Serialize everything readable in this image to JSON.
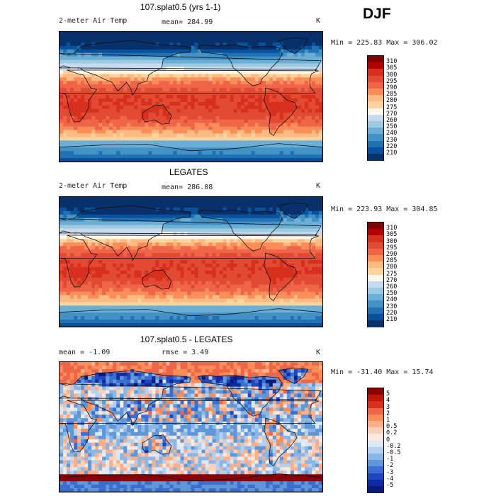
{
  "season": "DJF",
  "panels": [
    {
      "title": "107.splat0.5 (yrs 1-1)",
      "left_label": "2-meter Air Temp",
      "stat_label": "mean= 284.99",
      "unit": "K",
      "minmax": "Min = 225.83 Max = 306.02",
      "kind": "abs",
      "colorbar": {
        "levels": [
          "310",
          "305",
          "300",
          "295",
          "290",
          "285",
          "280",
          "275",
          "270",
          "260",
          "250",
          "240",
          "230",
          "220",
          "210"
        ],
        "colors": [
          "#7f0000",
          "#b30000",
          "#d7301f",
          "#e34a33",
          "#ef6548",
          "#fc8d59",
          "#fdbb84",
          "#fdd49e",
          "#fff7ec",
          "#c6dbef",
          "#9ecae1",
          "#6baed6",
          "#4292c6",
          "#2171b5",
          "#08519c",
          "#08306b"
        ]
      }
    },
    {
      "title": "LEGATES",
      "left_label": "2-meter Air Temp",
      "stat_label": "mean= 286.08",
      "unit": "K",
      "minmax": "Min = 223.93 Max = 304.85",
      "kind": "abs",
      "colorbar": {
        "levels": [
          "310",
          "305",
          "300",
          "295",
          "290",
          "285",
          "280",
          "275",
          "270",
          "260",
          "250",
          "240",
          "230",
          "220",
          "210"
        ],
        "colors": [
          "#7f0000",
          "#b30000",
          "#d7301f",
          "#e34a33",
          "#ef6548",
          "#fc8d59",
          "#fdbb84",
          "#fdd49e",
          "#fff7ec",
          "#c6dbef",
          "#9ecae1",
          "#6baed6",
          "#4292c6",
          "#2171b5",
          "#08519c",
          "#08306b"
        ]
      }
    },
    {
      "title": "107.splat0.5 - LEGATES",
      "left_label": "mean =   -1.09",
      "stat_label": "rmse =    3.49",
      "unit": "K",
      "minmax": "Min = -31.40 Max =  15.74",
      "kind": "diff",
      "colorbar": {
        "levels": [
          "5",
          "4",
          "3",
          "2",
          "1",
          "0.5",
          "0.2",
          "0",
          "-0.2",
          "-0.5",
          "-1",
          "-2",
          "-3",
          "-4",
          "-5"
        ],
        "colors": [
          "#8b0000",
          "#c0150a",
          "#d7301f",
          "#ef6548",
          "#fc8d59",
          "#fdae8b",
          "#fdd0b9",
          "#fde9de",
          "#dbe9f6",
          "#b3d1ee",
          "#8ab7e6",
          "#5f97d8",
          "#3a6fcf",
          "#1f47c2",
          "#0f2aa5",
          "#0a1a7a"
        ]
      }
    }
  ],
  "chart_data": {
    "type": "heatmap",
    "season": "DJF",
    "variable": "2-meter Air Temp",
    "unit": "K",
    "maps": [
      {
        "title": "107.splat0.5 (yrs 1-1)",
        "mean": 284.99,
        "min": 225.83,
        "max": 306.02,
        "colorbar_levels": [
          310,
          305,
          300,
          295,
          290,
          285,
          280,
          275,
          270,
          260,
          250,
          240,
          230,
          220,
          210
        ]
      },
      {
        "title": "LEGATES",
        "mean": 286.08,
        "min": 223.93,
        "max": 304.85,
        "colorbar_levels": [
          310,
          305,
          300,
          295,
          290,
          285,
          280,
          275,
          270,
          260,
          250,
          240,
          230,
          220,
          210
        ]
      },
      {
        "title": "107.splat0.5 - LEGATES",
        "mean": -1.09,
        "rmse": 3.49,
        "min": -31.4,
        "max": 15.74,
        "colorbar_levels": [
          5,
          4,
          3,
          2,
          1,
          0.5,
          0.2,
          0,
          -0.2,
          -0.5,
          -1,
          -2,
          -3,
          -4,
          -5
        ]
      }
    ]
  }
}
